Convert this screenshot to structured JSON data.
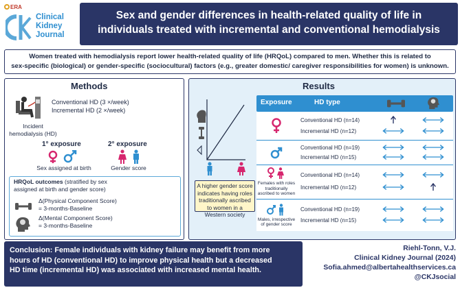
{
  "header": {
    "era": "ERA",
    "journal_line1": "Clinical",
    "journal_line2": "Kidney",
    "journal_line3": "Journal",
    "title_line1": "Sex and gender differences in health-related quality of life in",
    "title_line2": "individuals treated with incremental and conventional hemodialysis"
  },
  "intro": {
    "line1": "Women treated with hemodialysis report lower health-related quality of life (HRQoL) compared to men. Whether this is related to",
    "line2": "sex-specific (biological) or gender-specific (sociocultural) factors (e.g., greater domestic/ caregiver responsibilities for women) is unknown."
  },
  "methods": {
    "title": "Methods",
    "conventional": "Conventional HD (3 ×/week)",
    "incremental": "Incremental HD (2 ×/week)",
    "incident_line1": "Incident",
    "incident_line2": "hemodialysis (HD)",
    "exp1_title": "1° exposure",
    "exp2_title": "2° exposure",
    "exp1_label": "Sex assigned at birth",
    "exp2_label": "Gender score",
    "hrqol_title_bold": "HRQoL outcomes",
    "hrqol_title_rest": " (stratified by sex",
    "hrqol_title_line2": "assigned at birth and gender score)",
    "pcs_line1": "Δ(Physical Component Score)",
    "pcs_line2": "= 3-months-Baseline",
    "mcs_line1": "Δ(Mental Component Score)",
    "mcs_line2": "= 3-months-Baseline"
  },
  "results": {
    "title": "Results",
    "caption": "A higher gender score indicates having roles traditionally ascribed to women in a Western society",
    "col_exposure": "Exposure",
    "col_hd": "HD type",
    "rows": [
      {
        "conv": "Conventional HD (n=14)",
        "incr": "Incremental HD (n=12)",
        "note": "",
        "pcs": [
          "up",
          "both"
        ],
        "mcs": [
          "both",
          "both"
        ]
      },
      {
        "conv": "Conventional HD (n=19)",
        "incr": "Incremental HD (n=15)",
        "note": "",
        "pcs": [
          "both",
          "both"
        ],
        "mcs": [
          "both",
          "both"
        ]
      },
      {
        "conv": "Conventional HD (n=14)",
        "incr": "Incremental HD (n=12)",
        "note": "Females with roles traditionally ascribed to women",
        "pcs": [
          "both",
          "both"
        ],
        "mcs": [
          "both",
          "up"
        ]
      },
      {
        "conv": "Conventional HD (n=19)",
        "incr": "Incremental HD (n=15)",
        "note": "Males, irrespective of gender score",
        "pcs": [
          "both",
          "both"
        ],
        "mcs": [
          "both",
          "both"
        ]
      }
    ]
  },
  "conclusion": {
    "line1": "Conclusion: Female individuals with kidney failure may benefit from more",
    "line2": "hours of HD (conventional HD) to improve physical health but a decreased",
    "line3": "HD time (incremental HD) was associated with increased mental health."
  },
  "reference": {
    "author": "Riehl-Tonn, V.J.",
    "journal": "Clinical Kidney Journal (2024)",
    "email": "Sofia.ahmed@albertahealthservices.ca",
    "social": "@CKJsocial"
  },
  "colors": {
    "navy": "#2a3566",
    "blue": "#2f8fd0",
    "female": "#d6266e",
    "male": "#2f8fd0"
  }
}
